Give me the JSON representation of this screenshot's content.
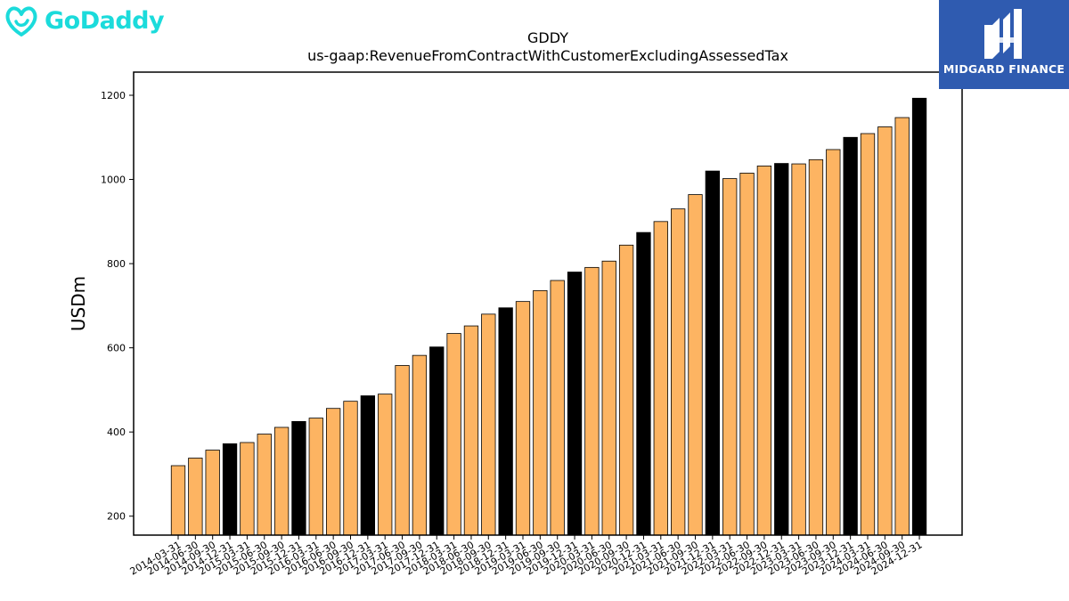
{
  "logos": {
    "left_text": "GoDaddy",
    "right_text": "MIDGARD FINANCE",
    "left_color": "#1bdbdb",
    "right_bg": "#2f5bb0"
  },
  "chart_data": {
    "type": "bar",
    "title": "GDDY",
    "subtitle": "us-gaap:RevenueFromContractWithCustomerExcludingAssessedTax",
    "xlabel": "",
    "ylabel": "USDm",
    "ylim": [
      155,
      1255
    ],
    "yticks": [
      200,
      400,
      600,
      800,
      1000,
      1200
    ],
    "grid": false,
    "colors": {
      "quarter": "#fdb462",
      "year_end": "#000000",
      "edge": "#000000"
    },
    "categories": [
      "2014-03-31",
      "2014-06-30",
      "2014-09-30",
      "2014-12-31",
      "2015-03-31",
      "2015-06-30",
      "2015-09-30",
      "2015-12-31",
      "2016-03-31",
      "2016-06-30",
      "2016-09-30",
      "2016-12-31",
      "2017-03-31",
      "2017-06-30",
      "2017-09-30",
      "2017-12-31",
      "2018-03-31",
      "2018-06-30",
      "2018-09-30",
      "2018-12-31",
      "2019-03-31",
      "2019-06-30",
      "2019-09-30",
      "2019-12-31",
      "2020-03-31",
      "2020-06-30",
      "2020-09-30",
      "2020-12-31",
      "2021-03-31",
      "2021-06-30",
      "2021-09-30",
      "2021-12-31",
      "2022-03-31",
      "2022-06-30",
      "2022-09-30",
      "2022-12-31",
      "2023-03-31",
      "2023-06-30",
      "2023-09-30",
      "2023-12-31",
      "2024-03-31",
      "2024-06-30",
      "2024-09-30",
      "2024-12-31"
    ],
    "values": [
      320,
      338,
      357,
      372,
      375,
      395,
      411,
      425,
      433,
      456,
      473,
      486,
      490,
      558,
      582,
      602,
      634,
      652,
      680,
      695,
      710,
      736,
      760,
      780,
      791,
      806,
      844,
      874,
      900,
      930,
      964,
      1020,
      1002,
      1015,
      1032,
      1038,
      1037,
      1047,
      1071,
      1100,
      1109,
      1125,
      1147,
      1193
    ],
    "year_end": [
      false,
      false,
      false,
      true,
      false,
      false,
      false,
      true,
      false,
      false,
      false,
      true,
      false,
      false,
      false,
      true,
      false,
      false,
      false,
      true,
      false,
      false,
      false,
      true,
      false,
      false,
      false,
      true,
      false,
      false,
      false,
      true,
      false,
      false,
      false,
      true,
      false,
      false,
      false,
      true,
      false,
      false,
      false,
      true
    ]
  }
}
